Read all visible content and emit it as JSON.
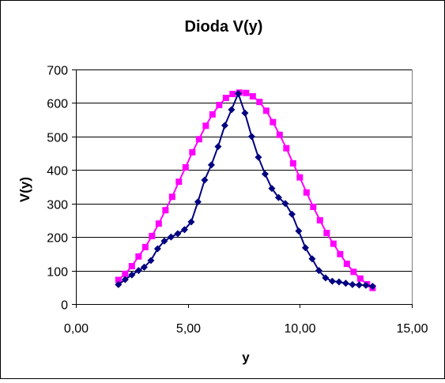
{
  "chart_data": {
    "type": "line",
    "title": "Dioda V(y)",
    "xlabel": "y",
    "ylabel": "V(y)",
    "xlim": [
      0,
      15
    ],
    "ylim": [
      0,
      700
    ],
    "x_ticks": [
      "0,00",
      "5,00",
      "10,00",
      "15,00"
    ],
    "y_ticks": [
      "0",
      "100",
      "200",
      "300",
      "400",
      "500",
      "600",
      "700"
    ],
    "grid": "horizontal",
    "legend": "none",
    "series": [
      {
        "color": "#ff00ff",
        "marker": "square",
        "points": [
          [
            1.9,
            72
          ],
          [
            2.2,
            90
          ],
          [
            2.5,
            113
          ],
          [
            2.8,
            142
          ],
          [
            3.1,
            170
          ],
          [
            3.4,
            203
          ],
          [
            3.7,
            240
          ],
          [
            4.0,
            280
          ],
          [
            4.3,
            320
          ],
          [
            4.6,
            365
          ],
          [
            4.9,
            408
          ],
          [
            5.2,
            453
          ],
          [
            5.5,
            492
          ],
          [
            5.8,
            532
          ],
          [
            6.1,
            566
          ],
          [
            6.4,
            594
          ],
          [
            6.7,
            615
          ],
          [
            7.0,
            627
          ],
          [
            7.3,
            631
          ],
          [
            7.6,
            630
          ],
          [
            7.9,
            620
          ],
          [
            8.2,
            603
          ],
          [
            8.5,
            577
          ],
          [
            8.8,
            543
          ],
          [
            9.1,
            505
          ],
          [
            9.4,
            465
          ],
          [
            9.7,
            420
          ],
          [
            10.0,
            378
          ],
          [
            10.3,
            333
          ],
          [
            10.6,
            290
          ],
          [
            10.9,
            250
          ],
          [
            11.2,
            212
          ],
          [
            11.5,
            180
          ],
          [
            11.8,
            149
          ],
          [
            12.1,
            120
          ],
          [
            12.4,
            96
          ],
          [
            12.7,
            76
          ],
          [
            13.0,
            59
          ],
          [
            13.25,
            48
          ]
        ]
      },
      {
        "color": "#000080",
        "marker": "diamond",
        "points": [
          [
            1.9,
            58
          ],
          [
            2.2,
            73
          ],
          [
            2.5,
            87
          ],
          [
            2.8,
            100
          ],
          [
            3.05,
            110
          ],
          [
            3.35,
            130
          ],
          [
            3.65,
            165
          ],
          [
            3.95,
            188
          ],
          [
            4.25,
            200
          ],
          [
            4.55,
            210
          ],
          [
            4.85,
            222
          ],
          [
            5.15,
            245
          ],
          [
            5.45,
            305
          ],
          [
            5.75,
            370
          ],
          [
            6.05,
            415
          ],
          [
            6.35,
            470
          ],
          [
            6.65,
            533
          ],
          [
            6.95,
            580
          ],
          [
            7.25,
            628
          ],
          [
            7.55,
            570
          ],
          [
            7.85,
            500
          ],
          [
            8.15,
            438
          ],
          [
            8.45,
            388
          ],
          [
            8.75,
            345
          ],
          [
            9.05,
            318
          ],
          [
            9.35,
            300
          ],
          [
            9.65,
            268
          ],
          [
            9.95,
            218
          ],
          [
            10.25,
            168
          ],
          [
            10.55,
            135
          ],
          [
            10.85,
            100
          ],
          [
            11.15,
            78
          ],
          [
            11.45,
            68
          ],
          [
            11.75,
            66
          ],
          [
            12.05,
            62
          ],
          [
            12.35,
            58
          ],
          [
            12.65,
            57
          ],
          [
            12.95,
            56
          ],
          [
            13.25,
            53
          ]
        ]
      }
    ]
  }
}
